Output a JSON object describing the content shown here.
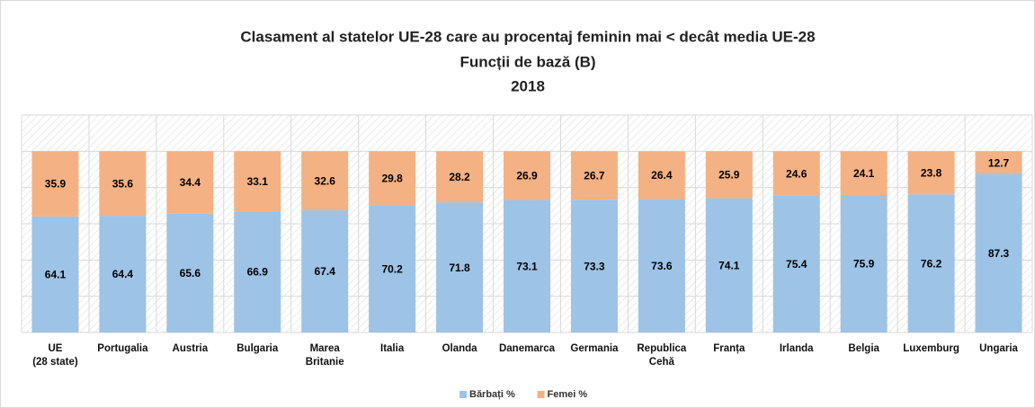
{
  "chart_data": {
    "type": "stacked_bar",
    "title": "Clasament al statelor UE-28 care au procentaj feminin mai < decât media UE-28",
    "subtitle": [
      "Funcții de bază (B)",
      "2018"
    ],
    "categories": [
      "UE\n(28 state)",
      "Portugalia",
      "Austria",
      "Bulgaria",
      "Marea\nBritanie",
      "Italia",
      "Olanda",
      "Danemarca",
      "Germania",
      "Republica\nCehă",
      "Franța",
      "Irlanda",
      "Belgia",
      "Luxemburg",
      "Ungaria"
    ],
    "series": [
      {
        "name": "Bărbați %",
        "color": "#9dc3e6",
        "values": [
          64.1,
          64.4,
          65.6,
          66.9,
          67.4,
          70.2,
          71.8,
          73.1,
          73.3,
          73.6,
          74.1,
          75.4,
          75.9,
          76.2,
          87.3
        ]
      },
      {
        "name": "Femei %",
        "color": "#f4b183",
        "values": [
          35.9,
          35.6,
          34.4,
          33.1,
          32.6,
          29.8,
          28.2,
          26.9,
          26.7,
          26.4,
          25.9,
          24.6,
          24.1,
          23.8,
          12.7
        ]
      }
    ],
    "ylim": [
      0,
      120
    ],
    "yticks": [
      0,
      20,
      40,
      60,
      80,
      100,
      120
    ],
    "grid": true,
    "legend": "bottom"
  }
}
